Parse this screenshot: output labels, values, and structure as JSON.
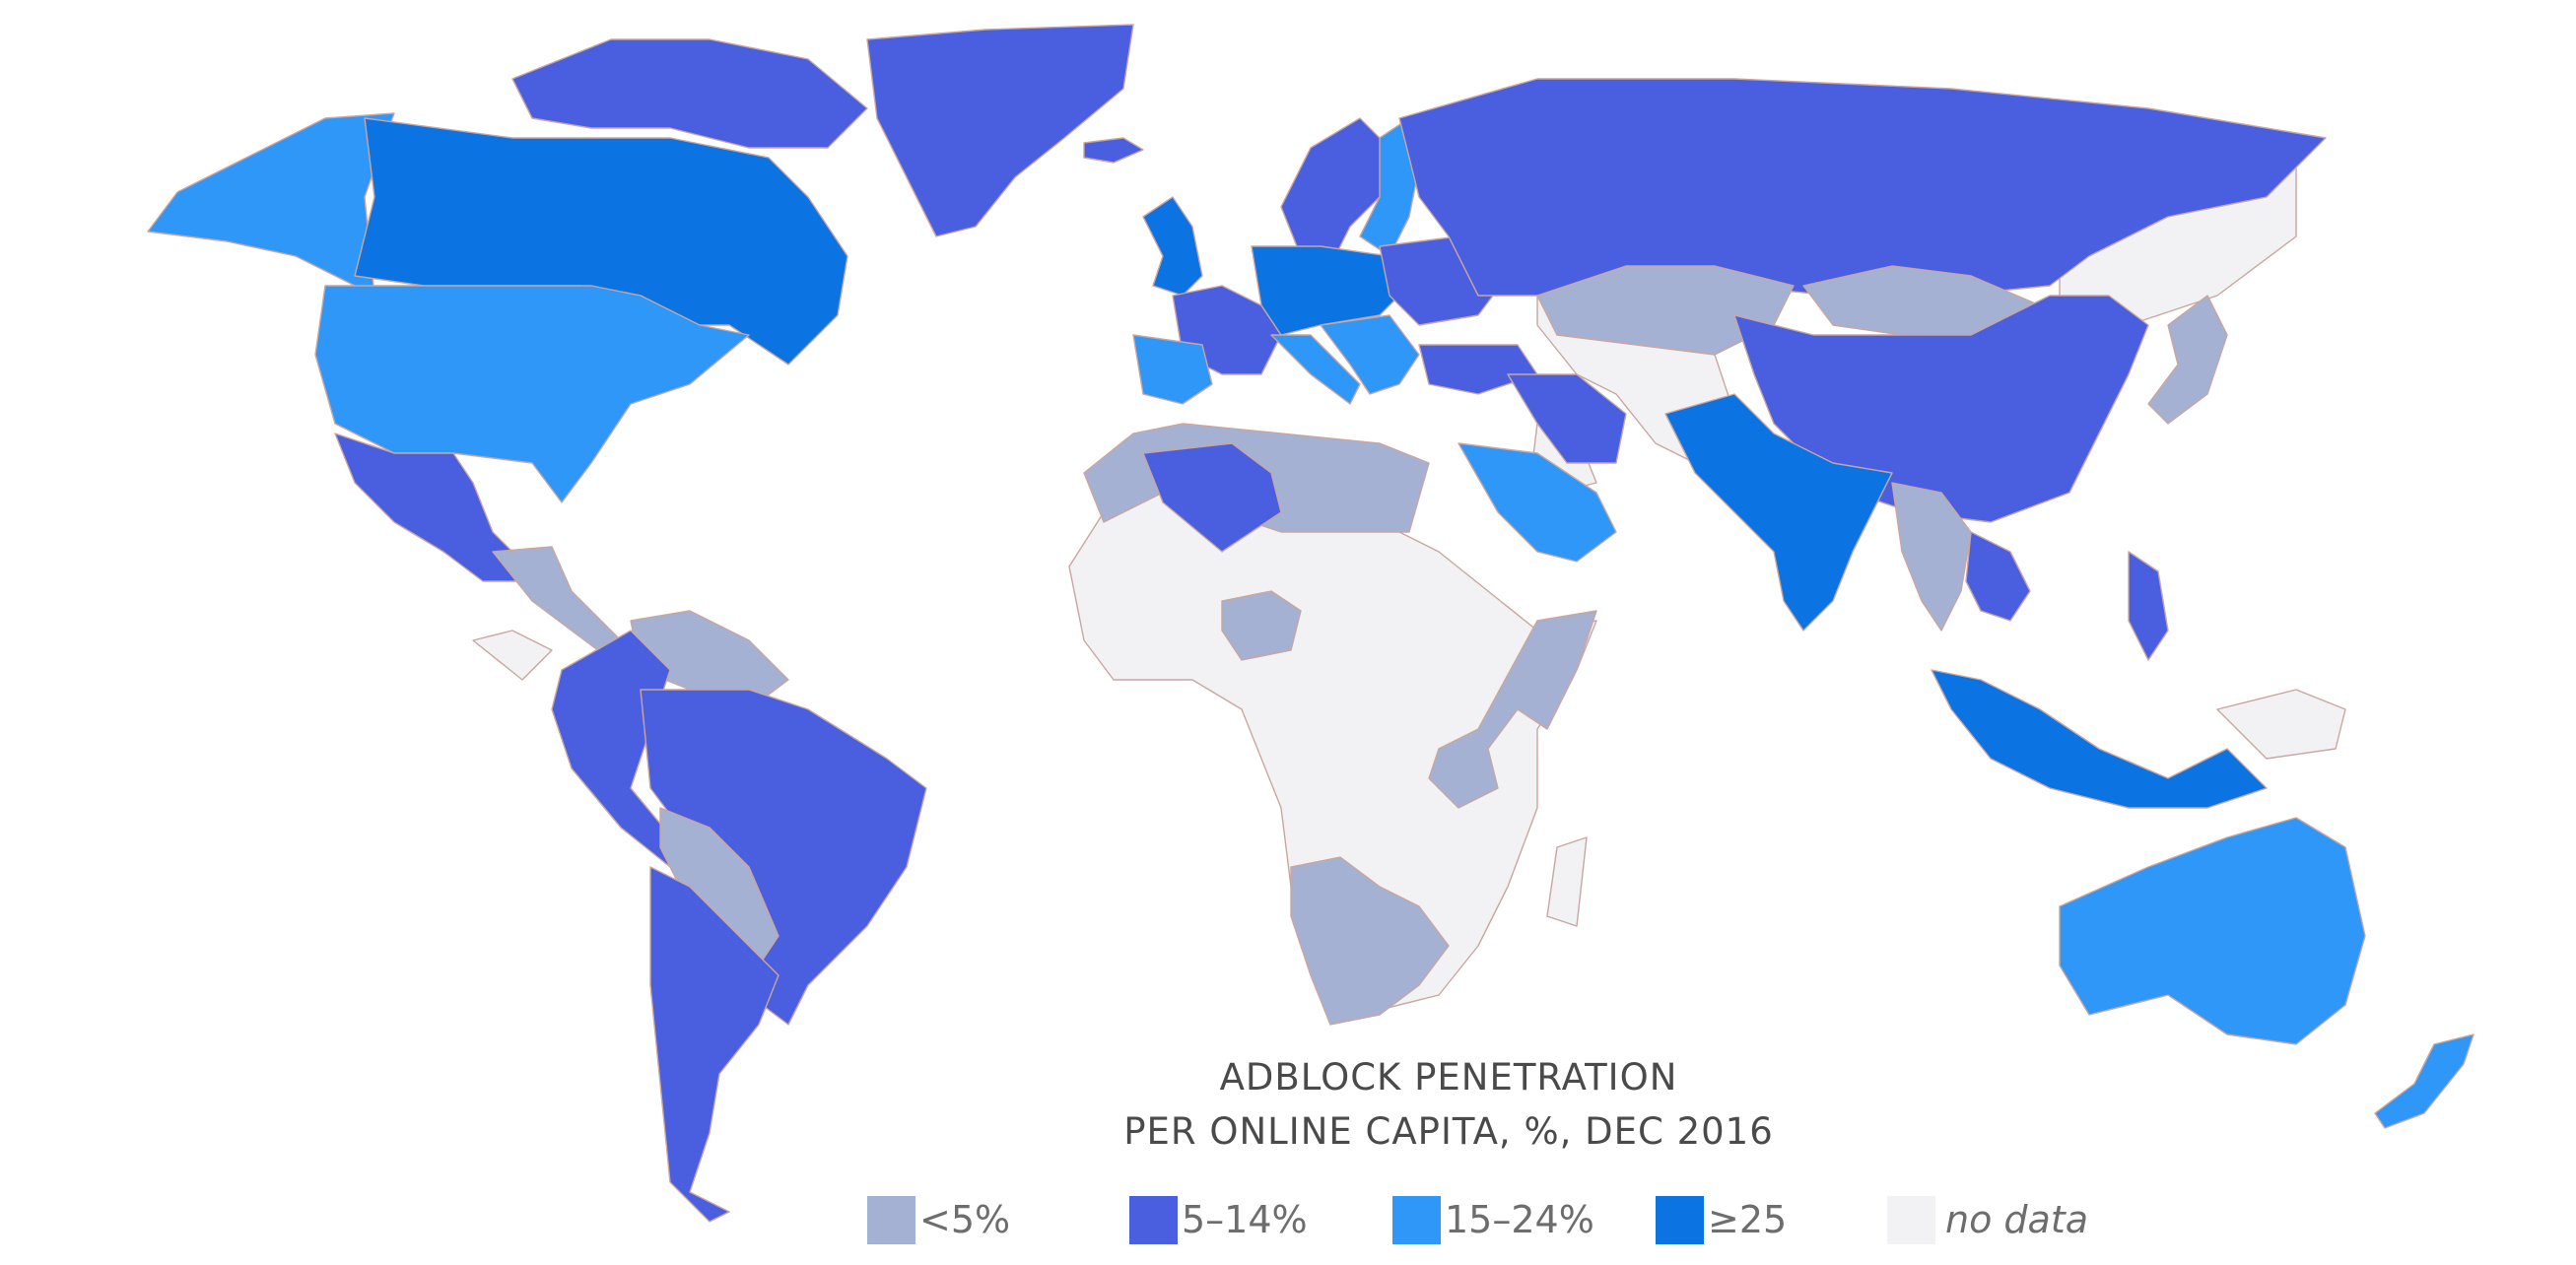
{
  "title": {
    "line1": "ADBLOCK PENETRATION",
    "line2": "PER ONLINE CAPITA, %, DEC 2016"
  },
  "legend": [
    {
      "key": "low",
      "label": "<5%",
      "color": "#a4b1d2"
    },
    {
      "key": "mid",
      "label": "5–14%",
      "color": "#4a5fe0"
    },
    {
      "key": "high",
      "label": "15–24%",
      "color": "#2f97f8"
    },
    {
      "key": "top",
      "label": "≥25",
      "color": "#0b73e2"
    },
    {
      "key": "none",
      "label": "no data",
      "color": "#f2f2f4"
    }
  ],
  "chart_data": {
    "type": "choropleth",
    "categories": [
      "<5%",
      "5–14%",
      "15–24%",
      "≥25",
      "no data"
    ],
    "regions": [
      {
        "region": "Canada",
        "category": "≥25"
      },
      {
        "region": "Alaska (USA)",
        "category": "15–24%"
      },
      {
        "region": "United States",
        "category": "15–24%"
      },
      {
        "region": "Canadian Arctic islands",
        "category": "5–14%"
      },
      {
        "region": "Greenland",
        "category": "5–14%"
      },
      {
        "region": "Iceland",
        "category": "5–14%"
      },
      {
        "region": "Mexico",
        "category": "5–14%"
      },
      {
        "region": "Central America",
        "category": "<5%"
      },
      {
        "region": "Venezuela / Guyana",
        "category": "<5%"
      },
      {
        "region": "Colombia / Ecuador / Peru",
        "category": "5–14%"
      },
      {
        "region": "Brazil",
        "category": "5–14%"
      },
      {
        "region": "Bolivia / Paraguay",
        "category": "<5%"
      },
      {
        "region": "Chile / Argentina",
        "category": "5–14%"
      },
      {
        "region": "United Kingdom / Ireland",
        "category": "≥25"
      },
      {
        "region": "Scandinavia",
        "category": "5–14%"
      },
      {
        "region": "Finland / Baltics",
        "category": "15–24%"
      },
      {
        "region": "France",
        "category": "5–14%"
      },
      {
        "region": "Spain / Portugal",
        "category": "15–24%"
      },
      {
        "region": "Central Europe",
        "category": "≥25"
      },
      {
        "region": "Italy",
        "category": "15–24%"
      },
      {
        "region": "Balkans",
        "category": "15–24%"
      },
      {
        "region": "Ukraine / Belarus",
        "category": "5–14%"
      },
      {
        "region": "Russia",
        "category": "5–14%"
      },
      {
        "region": "Turkey",
        "category": "5–14%"
      },
      {
        "region": "Kazakhstan",
        "category": "<5%"
      },
      {
        "region": "Mongolia",
        "category": "<5%"
      },
      {
        "region": "China",
        "category": "5–14%"
      },
      {
        "region": "Japan",
        "category": "<5%"
      },
      {
        "region": "Iran",
        "category": "5–14%"
      },
      {
        "region": "Saudi Arabia / Gulf",
        "category": "15–24%"
      },
      {
        "region": "Pakistan / India",
        "category": "≥25"
      },
      {
        "region": "Myanmar / Thailand",
        "category": "<5%"
      },
      {
        "region": "Vietnam / Cambodia",
        "category": "5–14%"
      },
      {
        "region": "Malaysia / Indonesia",
        "category": "≥25"
      },
      {
        "region": "Philippines",
        "category": "5–14%"
      },
      {
        "region": "Australia",
        "category": "15–24%"
      },
      {
        "region": "New Zealand",
        "category": "15–24%"
      },
      {
        "region": "Morocco / Libya / Egypt",
        "category": "<5%"
      },
      {
        "region": "Algeria",
        "category": "5–14%"
      },
      {
        "region": "Nigeria",
        "category": "<5%"
      },
      {
        "region": "Kenya / Tanzania / Somalia",
        "category": "<5%"
      },
      {
        "region": "Namibia / South Africa",
        "category": "<5%"
      }
    ]
  }
}
